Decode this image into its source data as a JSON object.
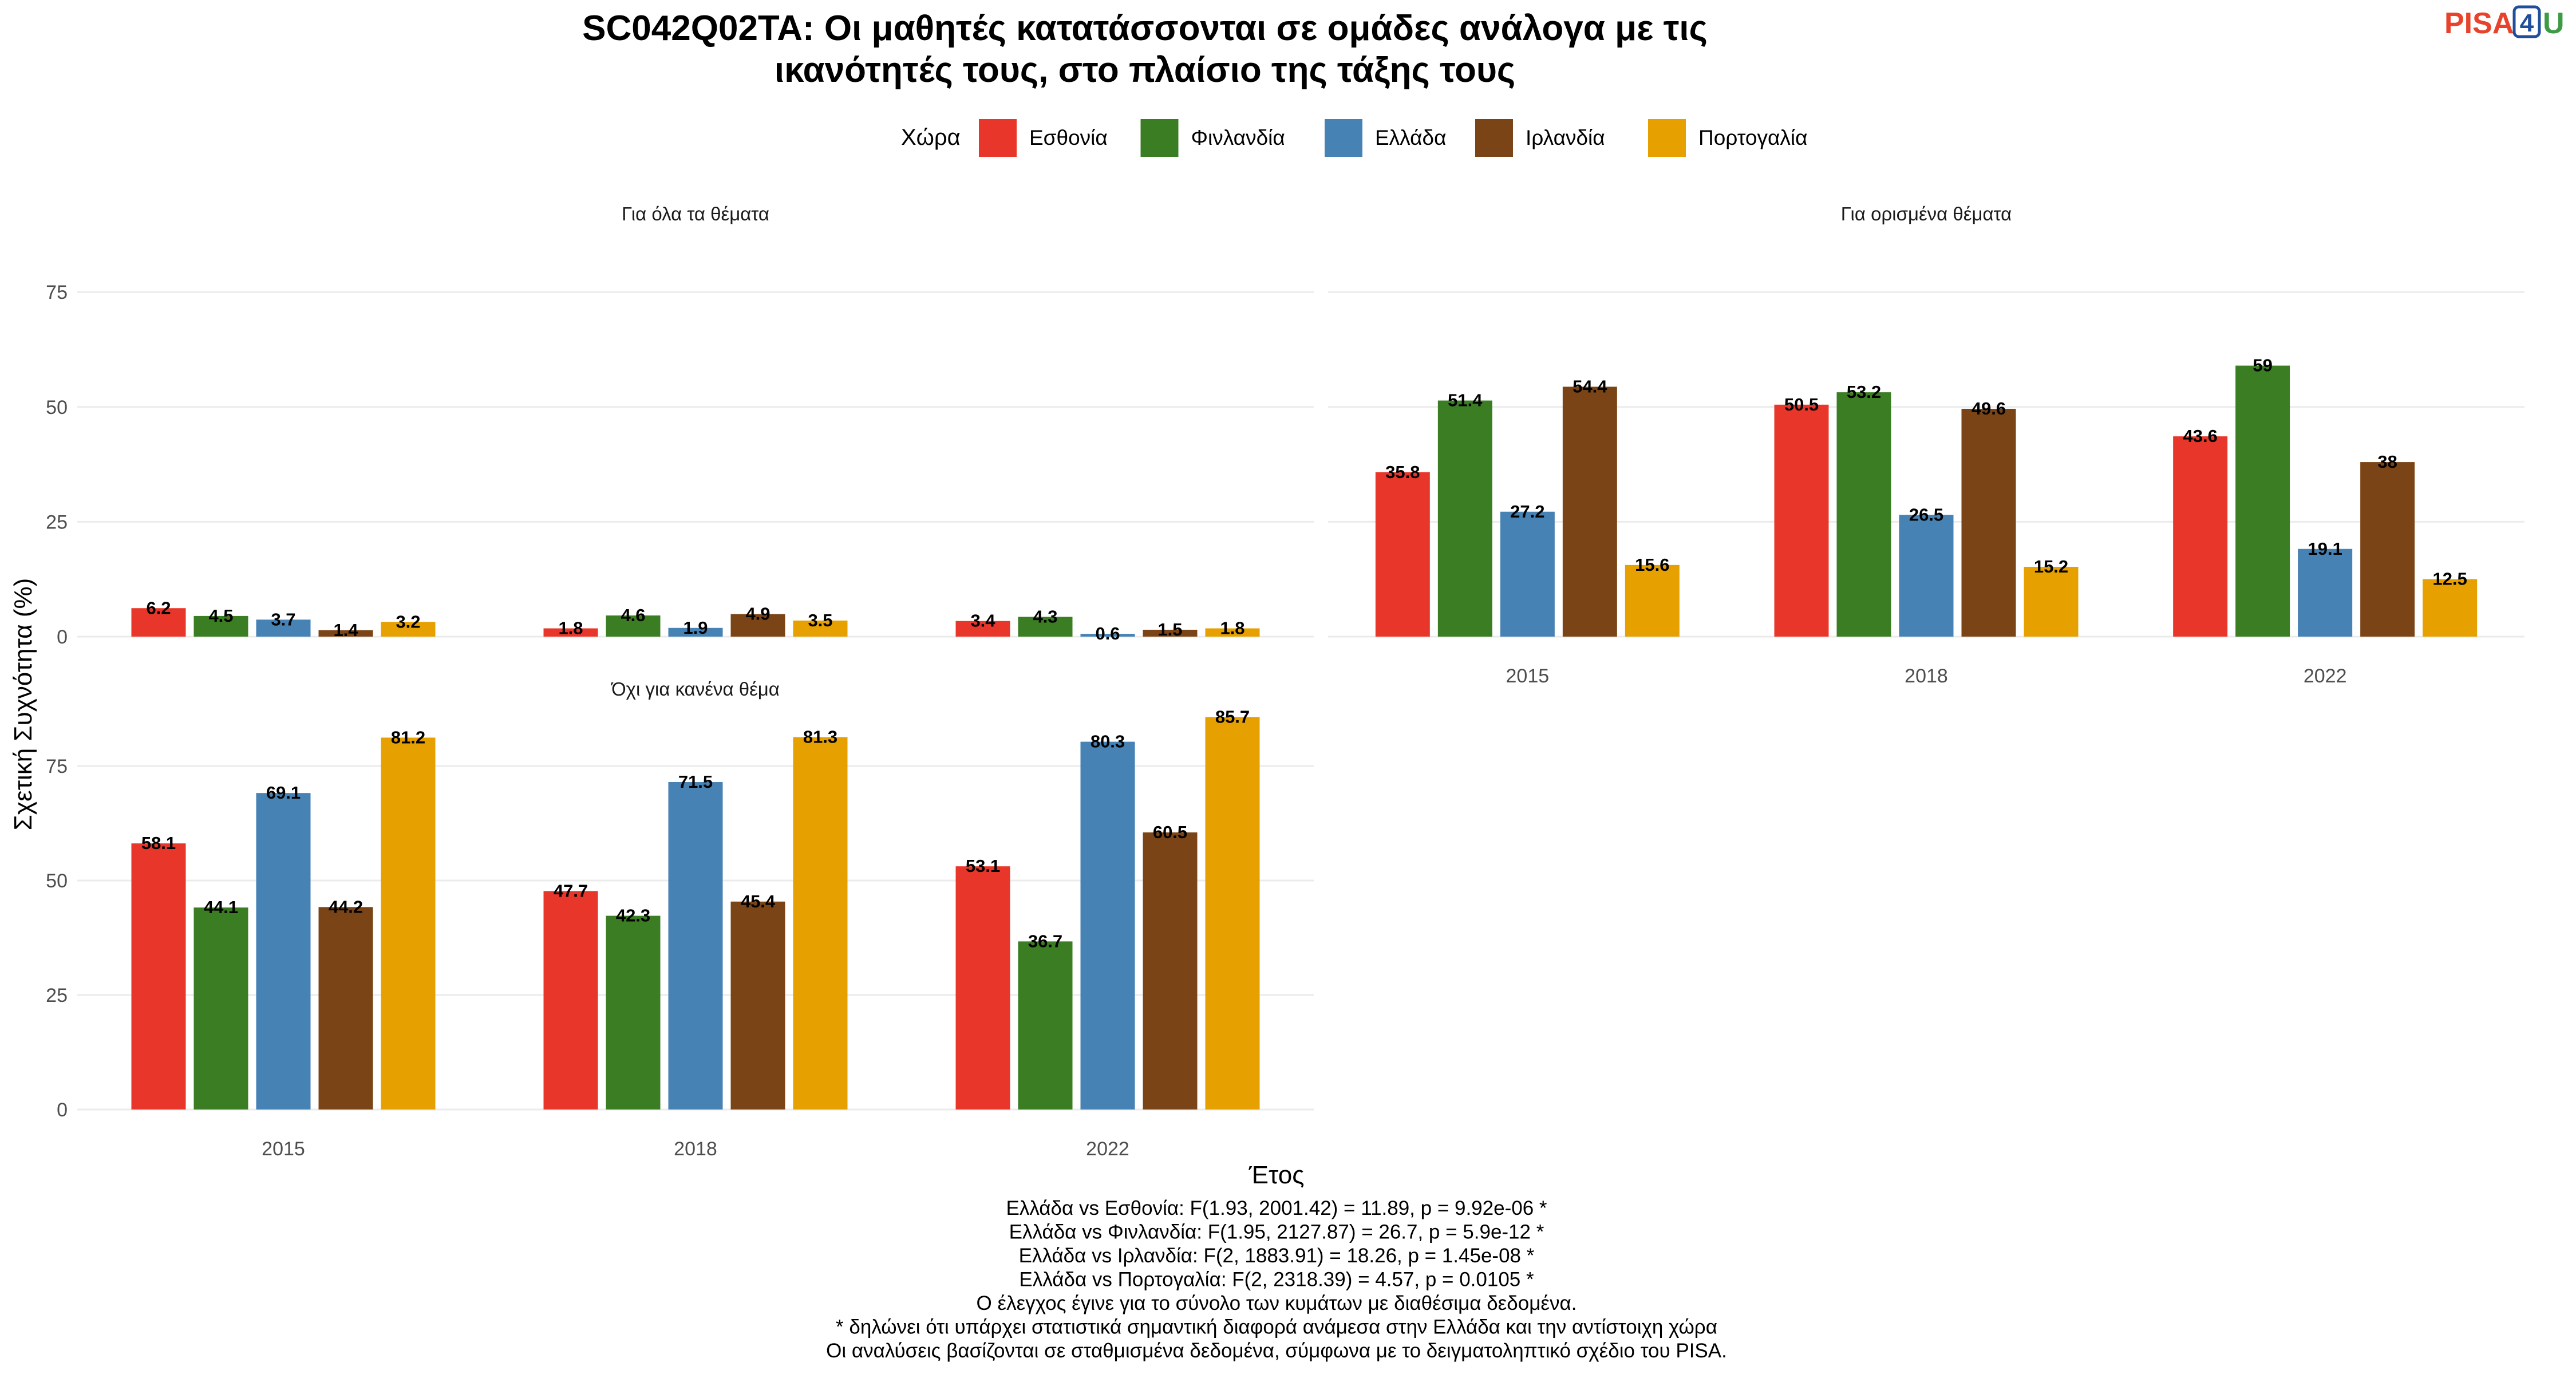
{
  "title": {
    "line1": "SC042Q02TA: Οι μαθητές κατατάσσονται σε ομάδες ανάλογα με τις",
    "line2": "ικανότητές τους, στο πλαίσιο της τάξης τους"
  },
  "logo": {
    "pisa": "PISA",
    "four": "4",
    "u": "U"
  },
  "legend": {
    "title": "Χώρα",
    "items": [
      {
        "label": "Εσθονία",
        "color": "#e8372a"
      },
      {
        "label": "Φινλανδία",
        "color": "#3a7d23"
      },
      {
        "label": "Ελλάδα",
        "color": "#4682b4"
      },
      {
        "label": "Ιρλανδία",
        "color": "#7b4416"
      },
      {
        "label": "Πορτογαλία",
        "color": "#e6a000"
      }
    ]
  },
  "chart_data": {
    "type": "bar",
    "xlabel": "Έτος",
    "ylabel": "Σχετική Συχνότητα (%)",
    "ylim": [
      0,
      85
    ],
    "yticks": [
      0,
      25,
      50,
      75
    ],
    "categories": [
      "2015",
      "2018",
      "2022"
    ],
    "grid": true,
    "legend_position": "top",
    "facets": [
      {
        "label": "Για όλα τα θέματα",
        "series": [
          {
            "name": "Εσθονία",
            "values": [
              6.2,
              1.8,
              3.4
            ]
          },
          {
            "name": "Φινλανδία",
            "values": [
              4.5,
              4.6,
              4.3
            ]
          },
          {
            "name": "Ελλάδα",
            "values": [
              3.7,
              1.9,
              0.6
            ]
          },
          {
            "name": "Ιρλανδία",
            "values": [
              1.4,
              4.9,
              1.5
            ]
          },
          {
            "name": "Πορτογαλία",
            "values": [
              3.2,
              3.5,
              1.8
            ]
          }
        ]
      },
      {
        "label": "Για ορισμένα θέματα",
        "series": [
          {
            "name": "Εσθονία",
            "values": [
              35.8,
              50.5,
              43.6
            ]
          },
          {
            "name": "Φινλανδία",
            "values": [
              51.4,
              53.2,
              59
            ]
          },
          {
            "name": "Ελλάδα",
            "values": [
              27.2,
              26.5,
              19.1
            ]
          },
          {
            "name": "Ιρλανδία",
            "values": [
              54.4,
              49.6,
              38
            ]
          },
          {
            "name": "Πορτογαλία",
            "values": [
              15.6,
              15.2,
              12.5
            ]
          }
        ]
      },
      {
        "label": "Όχι για κανένα θέμα",
        "series": [
          {
            "name": "Εσθονία",
            "values": [
              58.1,
              47.7,
              53.1
            ]
          },
          {
            "name": "Φινλανδία",
            "values": [
              44.1,
              42.3,
              36.7
            ]
          },
          {
            "name": "Ελλάδα",
            "values": [
              69.1,
              71.5,
              80.3
            ]
          },
          {
            "name": "Ιρλανδία",
            "values": [
              44.2,
              45.4,
              60.5
            ]
          },
          {
            "name": "Πορτογαλία",
            "values": [
              81.2,
              81.3,
              85.7
            ]
          }
        ]
      }
    ]
  },
  "caption": [
    "Ελλάδα vs Εσθονία: F(1.93, 2001.42) = 11.89, p = 9.92e-06 *",
    "Ελλάδα vs Φινλανδία: F(1.95, 2127.87) = 26.7, p = 5.9e-12 *",
    "Ελλάδα vs Ιρλανδία: F(2, 1883.91) = 18.26, p = 1.45e-08 *",
    "Ελλάδα vs Πορτογαλία: F(2, 2318.39) = 4.57, p = 0.0105 *",
    "Ο έλεγχος έγινε για το σύνολο των κυμάτων με διαθέσιμα δεδομένα.",
    "* δηλώνει ότι υπάρχει στατιστικά σημαντική διαφορά ανάμεσα στην Ελλάδα και την αντίστοιχη χώρα",
    "Οι αναλύσεις βασίζονται σε σταθμισμένα δεδομένα, σύμφωνα με το δειγματοληπτικό σχέδιο του PISA."
  ]
}
